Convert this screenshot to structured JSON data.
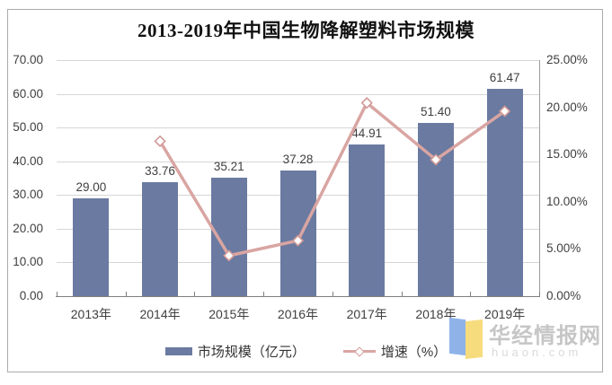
{
  "chart_data": {
    "type": "combo",
    "title": "2013-2019年中国生物降解塑料市场规模",
    "categories": [
      "2013年",
      "2014年",
      "2015年",
      "2016年",
      "2017年",
      "2018年",
      "2019年"
    ],
    "series": [
      {
        "name": "市场规模（亿元）",
        "type": "bar",
        "axis": "left",
        "values": [
          29.0,
          33.76,
          35.21,
          37.28,
          44.91,
          51.4,
          61.47
        ],
        "labels": [
          "29.00",
          "33.76",
          "35.21",
          "37.28",
          "44.91",
          "51.40",
          "61.47"
        ],
        "color": "#6A7AA1"
      },
      {
        "name": "增速（%）",
        "type": "line",
        "axis": "right",
        "values": [
          null,
          16.41,
          4.29,
          5.88,
          20.47,
          14.45,
          19.59
        ],
        "color": "#D9A5A2",
        "marker": "hollow-diamond"
      }
    ],
    "left_axis": {
      "min": 0,
      "max": 70,
      "step": 10,
      "tick_labels": [
        "0.00",
        "10.00",
        "20.00",
        "30.00",
        "40.00",
        "50.00",
        "60.00",
        "70.00"
      ]
    },
    "right_axis": {
      "min": 0,
      "max": 25,
      "step": 5,
      "tick_labels": [
        "0.00%",
        "5.00%",
        "10.00%",
        "15.00%",
        "20.00%",
        "25.00%"
      ]
    },
    "grid": true,
    "legend_position": "bottom"
  },
  "legend": {
    "items": [
      {
        "label": "市场规模（亿元）",
        "marker": "bar"
      },
      {
        "label": "增速（%）",
        "marker": "line-diamond"
      }
    ]
  },
  "watermark": {
    "name": "华经情报网",
    "domain": "huaon.com"
  },
  "colors": {
    "bar": "#6A7AA1",
    "line": "#D9A5A2",
    "grid": "#D6D6D6",
    "axis": "#7F7F7F",
    "text": "#404040"
  }
}
